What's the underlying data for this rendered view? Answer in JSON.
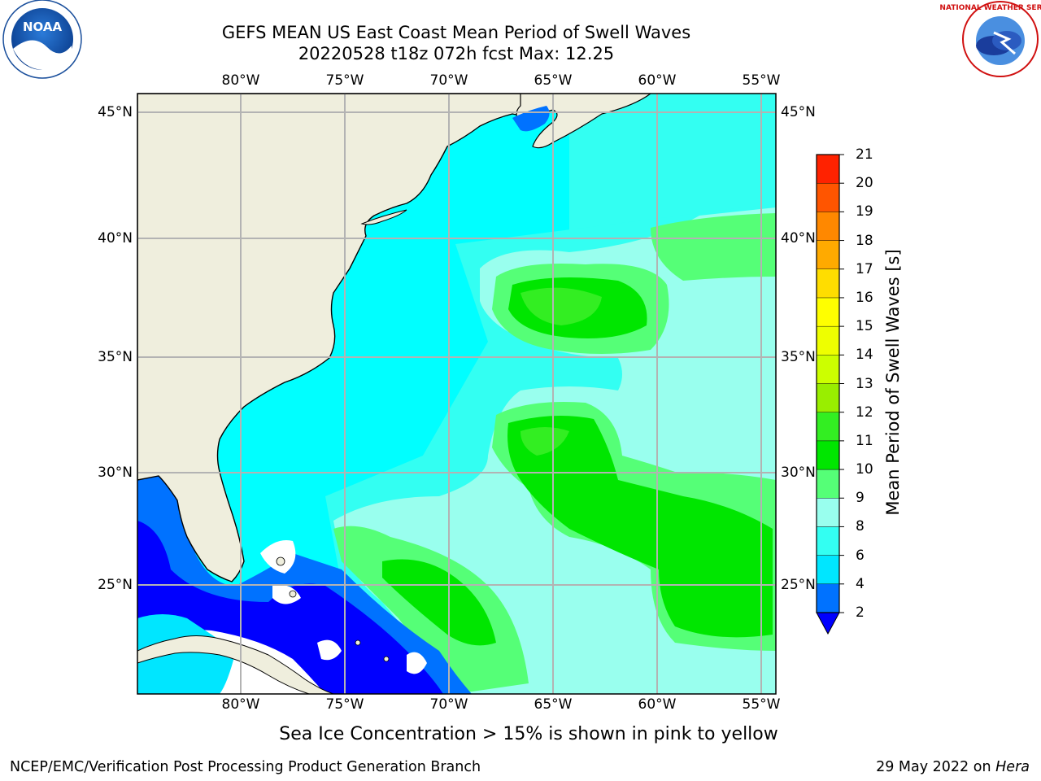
{
  "title": {
    "line1": "GEFS MEAN US East Coast Mean Period of Swell Waves",
    "line2": "20220528 t18z 072h fcst   Max: 12.25"
  },
  "map": {
    "lon_ticks": [
      "80°W",
      "75°W",
      "70°W",
      "65°W",
      "60°W",
      "55°W"
    ],
    "lat_ticks": [
      "45°N",
      "40°N",
      "35°N",
      "30°N",
      "25°N"
    ],
    "colors": {
      "land": "#efeedd",
      "ocean_fill": "#00ffff",
      "grid": "#b3b3b3"
    }
  },
  "colorbar": {
    "title": "Mean Period of Swell Waves [s]",
    "levels": [
      "2",
      "4",
      "6",
      "8",
      "9",
      "10",
      "11",
      "12",
      "13",
      "14",
      "15",
      "16",
      "17",
      "18",
      "19",
      "20",
      "21"
    ],
    "colors": [
      "#0072ff",
      "#00e6ff",
      "#33fff2",
      "#99ffee",
      "#55ff77",
      "#00e600",
      "#33ee22",
      "#99ee00",
      "#ccff00",
      "#eeff00",
      "#ffff00",
      "#ffdd00",
      "#ffaa00",
      "#ff8800",
      "#ff5500",
      "#ff2200",
      "#ff0000"
    ],
    "extend_color": "#0000ff"
  },
  "logos": {
    "left": "NOAA",
    "right": "NATIONAL WEATHER SERVICE"
  },
  "footer": {
    "note": "Sea Ice Concentration > 15% is shown in pink to yellow",
    "credit": "NCEP/EMC/Verification Post Processing Product Generation Branch",
    "date": "29 May 2022 on",
    "machine": "Hera"
  }
}
